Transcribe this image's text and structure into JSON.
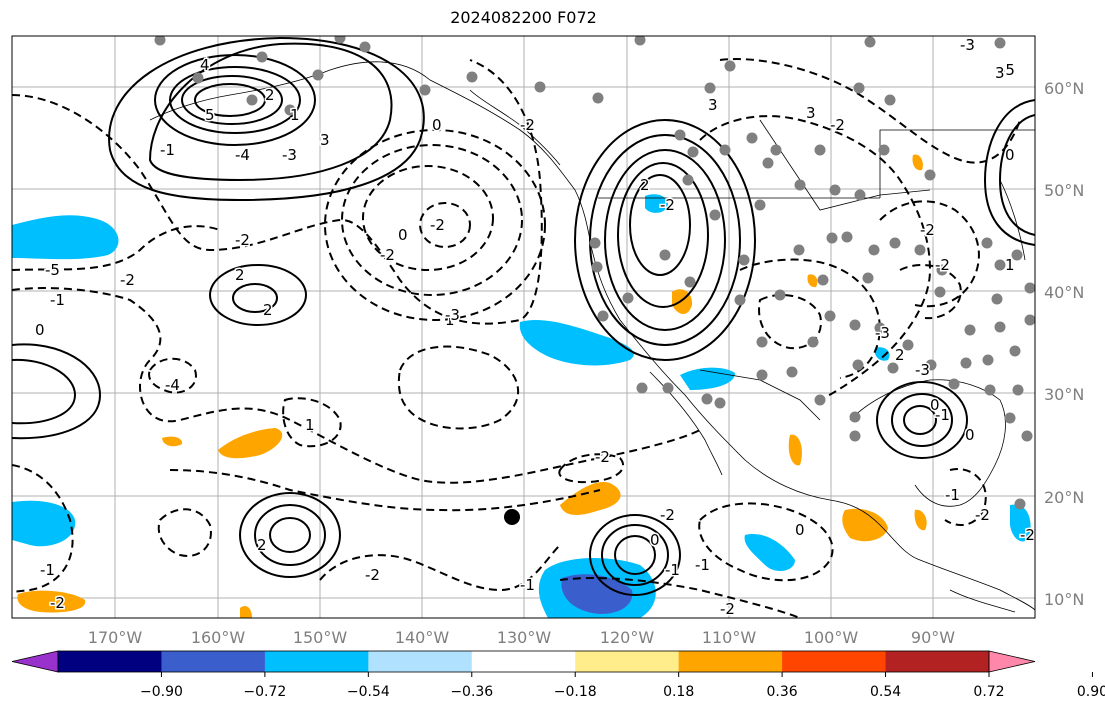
{
  "title": "2024082200 F072",
  "lat_labels": [
    "60°N",
    "50°N",
    "40°N",
    "30°N",
    "20°N",
    "10°N"
  ],
  "lon_labels": [
    "170°W",
    "160°W",
    "150°W",
    "140°W",
    "130°W",
    "120°W",
    "110°W",
    "100°W",
    "90°W"
  ],
  "colorbar": {
    "ticks": [
      "−0.90",
      "−0.72",
      "−0.54",
      "−0.36",
      "−0.18",
      "0.18",
      "0.36",
      "0.54",
      "0.72",
      "0.90"
    ],
    "colors": [
      "#9932cc",
      "#000080",
      "#3a5fcd",
      "#00bfff",
      "#b0e2ff",
      "#ffffff",
      "#ffec8b",
      "#ffa500",
      "#ff4500",
      "#b22222",
      "#ff88aa"
    ]
  },
  "contour_labels": [
    "4",
    "5",
    "3",
    "2",
    "1",
    "0",
    "-1",
    "-2",
    "-3",
    "-4",
    "-5",
    "0",
    "-1",
    "-2",
    "1",
    "-2",
    "0",
    "-2",
    "-3",
    "-4",
    "-2",
    "2",
    "3",
    "3",
    "-2",
    "-5",
    "3",
    "-3",
    "2",
    "-2",
    "-1",
    "-2",
    "0",
    "-2",
    "0",
    "-1",
    "-2",
    "-2",
    "0",
    "-2",
    "2",
    "-2",
    "-1",
    "-1",
    "-2",
    "0",
    "-1",
    "2",
    "1",
    "2",
    "-3",
    "-2",
    "1",
    "0",
    "-1",
    "-2",
    "-3"
  ],
  "colors": {
    "grid": "#b0b0b0",
    "coast": "#000000",
    "station": "#808080",
    "positive_fill": "#ffa500",
    "negative_fill": "#00bfff",
    "strong_negative_fill": "#3a5fcd"
  }
}
